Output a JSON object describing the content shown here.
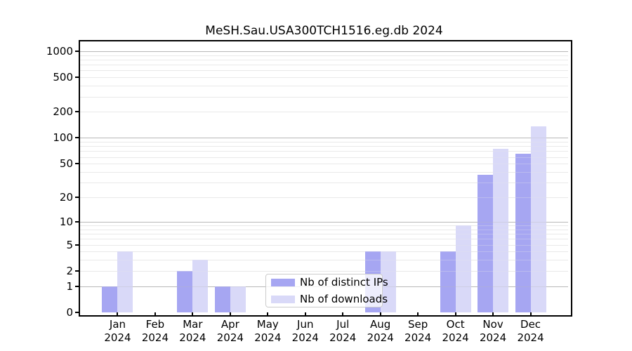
{
  "title": "MeSH.Sau.USA300TCH1516.eg.db 2024",
  "chart_data": {
    "type": "bar",
    "title": "MeSH.Sau.USA300TCH1516.eg.db 2024",
    "categories": [
      "Jan",
      "Feb",
      "Mar",
      "Apr",
      "May",
      "Jun",
      "Jul",
      "Aug",
      "Sep",
      "Oct",
      "Nov",
      "Dec"
    ],
    "year_label": "2024",
    "series": [
      {
        "name": "Nb of distinct IPs",
        "color": "#a6a6f2",
        "values": [
          1,
          0,
          2,
          1,
          0,
          0,
          0,
          4,
          0,
          4,
          37,
          66
        ]
      },
      {
        "name": "Nb of downloads",
        "color": "#d9d9f8",
        "values": [
          4,
          0,
          3,
          1,
          0,
          0,
          0,
          4,
          0,
          9,
          75,
          135
        ]
      }
    ],
    "y_axis": {
      "scale": "log1p",
      "tick_values": [
        0,
        1,
        2,
        5,
        10,
        20,
        50,
        100,
        200,
        500,
        1000
      ],
      "major_gridlines": [
        1,
        10,
        100,
        1000
      ],
      "minor_gridlines": [
        2,
        3,
        4,
        5,
        6,
        7,
        8,
        9,
        20,
        30,
        40,
        50,
        60,
        70,
        80,
        90,
        200,
        300,
        400,
        500,
        600,
        700,
        800,
        900
      ],
      "ylim": [
        0,
        1300
      ]
    },
    "grid": true,
    "legend_position": "lower center",
    "style": {
      "major_grid_color": "#b8b8b8",
      "minor_grid_color": "#e9e9e9",
      "spine_color": "#000000",
      "background": "#ffffff"
    }
  }
}
